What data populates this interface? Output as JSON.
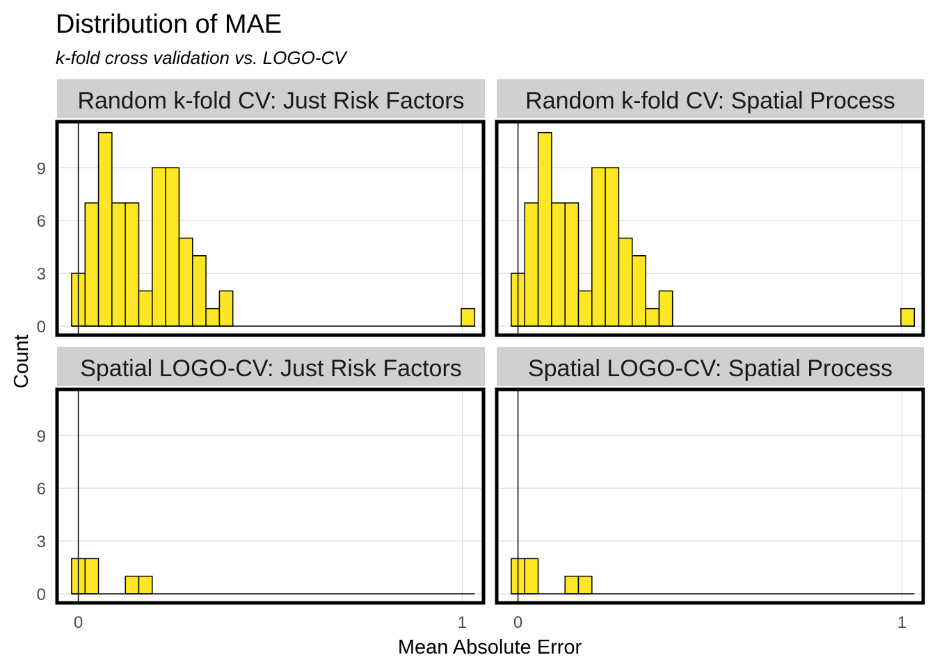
{
  "chart_data": {
    "type": "histogram",
    "title": "Distribution of MAE",
    "subtitle": "k-fold cross validation vs. LOGO-CV",
    "xlabel": "Mean Absolute Error",
    "ylabel": "Count",
    "xlim": [
      -0.05,
      1.05
    ],
    "ylim": [
      0,
      11.5
    ],
    "x_ticks": [
      0,
      1
    ],
    "y_ticks": [
      0,
      3,
      6,
      9
    ],
    "bin_width": 0.035,
    "bar_color": "#FDE725",
    "bar_edge_color": "#000000",
    "grid": true,
    "panels": [
      {
        "title": "Random k-fold CV: Just Risk Factors",
        "bins": [
          {
            "x": 0.0,
            "count": 3
          },
          {
            "x": 0.035,
            "count": 7
          },
          {
            "x": 0.07,
            "count": 11
          },
          {
            "x": 0.105,
            "count": 7
          },
          {
            "x": 0.14,
            "count": 7
          },
          {
            "x": 0.175,
            "count": 2
          },
          {
            "x": 0.21,
            "count": 9
          },
          {
            "x": 0.245,
            "count": 9
          },
          {
            "x": 0.28,
            "count": 5
          },
          {
            "x": 0.315,
            "count": 4
          },
          {
            "x": 0.35,
            "count": 1
          },
          {
            "x": 0.385,
            "count": 2
          },
          {
            "x": 0.42,
            "count": 0
          },
          {
            "x": 0.455,
            "count": 0
          },
          {
            "x": 0.49,
            "count": 0
          },
          {
            "x": 0.525,
            "count": 0
          },
          {
            "x": 0.56,
            "count": 0
          },
          {
            "x": 0.595,
            "count": 0
          },
          {
            "x": 0.63,
            "count": 0
          },
          {
            "x": 0.665,
            "count": 0
          },
          {
            "x": 0.7,
            "count": 0
          },
          {
            "x": 0.735,
            "count": 0
          },
          {
            "x": 0.77,
            "count": 0
          },
          {
            "x": 0.805,
            "count": 0
          },
          {
            "x": 0.84,
            "count": 0
          },
          {
            "x": 0.875,
            "count": 0
          },
          {
            "x": 0.91,
            "count": 0
          },
          {
            "x": 0.945,
            "count": 0
          },
          {
            "x": 0.98,
            "count": 0
          },
          {
            "x": 1.015,
            "count": 1
          }
        ]
      },
      {
        "title": "Random k-fold CV: Spatial Process",
        "bins": [
          {
            "x": 0.0,
            "count": 3
          },
          {
            "x": 0.035,
            "count": 7
          },
          {
            "x": 0.07,
            "count": 11
          },
          {
            "x": 0.105,
            "count": 7
          },
          {
            "x": 0.14,
            "count": 7
          },
          {
            "x": 0.175,
            "count": 2
          },
          {
            "x": 0.21,
            "count": 9
          },
          {
            "x": 0.245,
            "count": 9
          },
          {
            "x": 0.28,
            "count": 5
          },
          {
            "x": 0.315,
            "count": 4
          },
          {
            "x": 0.35,
            "count": 1
          },
          {
            "x": 0.385,
            "count": 2
          },
          {
            "x": 0.42,
            "count": 0
          },
          {
            "x": 0.455,
            "count": 0
          },
          {
            "x": 0.49,
            "count": 0
          },
          {
            "x": 0.525,
            "count": 0
          },
          {
            "x": 0.56,
            "count": 0
          },
          {
            "x": 0.595,
            "count": 0
          },
          {
            "x": 0.63,
            "count": 0
          },
          {
            "x": 0.665,
            "count": 0
          },
          {
            "x": 0.7,
            "count": 0
          },
          {
            "x": 0.735,
            "count": 0
          },
          {
            "x": 0.77,
            "count": 0
          },
          {
            "x": 0.805,
            "count": 0
          },
          {
            "x": 0.84,
            "count": 0
          },
          {
            "x": 0.875,
            "count": 0
          },
          {
            "x": 0.91,
            "count": 0
          },
          {
            "x": 0.945,
            "count": 0
          },
          {
            "x": 0.98,
            "count": 0
          },
          {
            "x": 1.015,
            "count": 1
          }
        ]
      },
      {
        "title": "Spatial LOGO-CV: Just Risk Factors",
        "bins": [
          {
            "x": 0.0,
            "count": 2
          },
          {
            "x": 0.035,
            "count": 2
          },
          {
            "x": 0.07,
            "count": 0
          },
          {
            "x": 0.105,
            "count": 0
          },
          {
            "x": 0.14,
            "count": 1
          },
          {
            "x": 0.175,
            "count": 1
          },
          {
            "x": 0.21,
            "count": 0
          },
          {
            "x": 0.245,
            "count": 0
          },
          {
            "x": 0.28,
            "count": 0
          },
          {
            "x": 0.315,
            "count": 0
          },
          {
            "x": 0.35,
            "count": 0
          },
          {
            "x": 0.385,
            "count": 0
          },
          {
            "x": 0.42,
            "count": 0
          },
          {
            "x": 0.455,
            "count": 0
          },
          {
            "x": 0.49,
            "count": 0
          },
          {
            "x": 0.525,
            "count": 0
          },
          {
            "x": 0.56,
            "count": 0
          },
          {
            "x": 0.595,
            "count": 0
          },
          {
            "x": 0.63,
            "count": 0
          },
          {
            "x": 0.665,
            "count": 0
          },
          {
            "x": 0.7,
            "count": 0
          },
          {
            "x": 0.735,
            "count": 0
          },
          {
            "x": 0.77,
            "count": 0
          },
          {
            "x": 0.805,
            "count": 0
          },
          {
            "x": 0.84,
            "count": 0
          },
          {
            "x": 0.875,
            "count": 0
          },
          {
            "x": 0.91,
            "count": 0
          },
          {
            "x": 0.945,
            "count": 0
          },
          {
            "x": 0.98,
            "count": 0
          },
          {
            "x": 1.015,
            "count": 0
          }
        ]
      },
      {
        "title": "Spatial LOGO-CV: Spatial Process",
        "bins": [
          {
            "x": 0.0,
            "count": 2
          },
          {
            "x": 0.035,
            "count": 2
          },
          {
            "x": 0.07,
            "count": 0
          },
          {
            "x": 0.105,
            "count": 0
          },
          {
            "x": 0.14,
            "count": 1
          },
          {
            "x": 0.175,
            "count": 1
          },
          {
            "x": 0.21,
            "count": 0
          },
          {
            "x": 0.245,
            "count": 0
          },
          {
            "x": 0.28,
            "count": 0
          },
          {
            "x": 0.315,
            "count": 0
          },
          {
            "x": 0.35,
            "count": 0
          },
          {
            "x": 0.385,
            "count": 0
          },
          {
            "x": 0.42,
            "count": 0
          },
          {
            "x": 0.455,
            "count": 0
          },
          {
            "x": 0.49,
            "count": 0
          },
          {
            "x": 0.525,
            "count": 0
          },
          {
            "x": 0.56,
            "count": 0
          },
          {
            "x": 0.595,
            "count": 0
          },
          {
            "x": 0.63,
            "count": 0
          },
          {
            "x": 0.665,
            "count": 0
          },
          {
            "x": 0.7,
            "count": 0
          },
          {
            "x": 0.735,
            "count": 0
          },
          {
            "x": 0.77,
            "count": 0
          },
          {
            "x": 0.805,
            "count": 0
          },
          {
            "x": 0.84,
            "count": 0
          },
          {
            "x": 0.875,
            "count": 0
          },
          {
            "x": 0.91,
            "count": 0
          },
          {
            "x": 0.945,
            "count": 0
          },
          {
            "x": 0.98,
            "count": 0
          },
          {
            "x": 1.015,
            "count": 0
          }
        ]
      }
    ]
  }
}
